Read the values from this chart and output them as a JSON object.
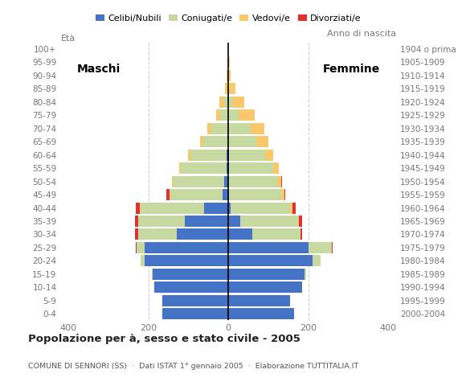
{
  "age_groups": [
    "0-4",
    "5-9",
    "10-14",
    "15-19",
    "20-24",
    "25-29",
    "30-34",
    "35-39",
    "40-44",
    "45-49",
    "50-54",
    "55-59",
    "60-64",
    "65-69",
    "70-74",
    "75-79",
    "80-84",
    "85-89",
    "90-94",
    "95-99",
    "100+"
  ],
  "birth_years": [
    "2000-2004",
    "1995-1999",
    "1990-1994",
    "1985-1989",
    "1980-1984",
    "1975-1979",
    "1970-1974",
    "1965-1969",
    "1960-1964",
    "1955-1959",
    "1950-1954",
    "1945-1949",
    "1940-1944",
    "1935-1939",
    "1930-1934",
    "1925-1929",
    "1920-1924",
    "1915-1919",
    "1910-1914",
    "1905-1909",
    "1904 o prima"
  ],
  "males": {
    "celibe": [
      165,
      165,
      185,
      190,
      210,
      210,
      130,
      110,
      60,
      15,
      10,
      5,
      5,
      2,
      2,
      0,
      0,
      0,
      0,
      0,
      0
    ],
    "coniugato": [
      0,
      0,
      0,
      2,
      10,
      20,
      95,
      115,
      160,
      130,
      130,
      115,
      90,
      60,
      40,
      20,
      10,
      3,
      2,
      0,
      0
    ],
    "vedovo": [
      0,
      0,
      0,
      0,
      0,
      0,
      0,
      0,
      2,
      2,
      2,
      3,
      5,
      8,
      10,
      10,
      12,
      5,
      2,
      0,
      0
    ],
    "divorziato": [
      0,
      0,
      0,
      0,
      0,
      2,
      8,
      8,
      10,
      8,
      0,
      0,
      0,
      0,
      0,
      0,
      0,
      0,
      0,
      0,
      0
    ]
  },
  "females": {
    "nubile": [
      165,
      155,
      185,
      190,
      210,
      200,
      60,
      30,
      5,
      2,
      2,
      2,
      2,
      0,
      0,
      0,
      0,
      0,
      0,
      0,
      0
    ],
    "coniugata": [
      0,
      0,
      0,
      5,
      20,
      60,
      120,
      145,
      150,
      130,
      120,
      110,
      90,
      70,
      55,
      25,
      10,
      2,
      0,
      0,
      0
    ],
    "vedova": [
      0,
      0,
      0,
      0,
      0,
      0,
      0,
      2,
      5,
      8,
      10,
      15,
      20,
      30,
      35,
      40,
      30,
      15,
      5,
      3,
      0
    ],
    "divorziata": [
      0,
      0,
      0,
      0,
      0,
      2,
      5,
      8,
      8,
      2,
      2,
      0,
      0,
      0,
      0,
      0,
      0,
      0,
      0,
      0,
      0
    ]
  },
  "color_celibe": "#4472c4",
  "color_coniugato": "#c5d9a0",
  "color_vedovo": "#f9c86a",
  "color_divorziato": "#e03030",
  "title": "Popolazione per à, sesso e stato civile - 2005",
  "subtitle": "COMUNE DI SENNORI (SS)  ·  Dati ISTAT 1° gennaio 2005  ·  Elaborazione TUTTITALIA.IT",
  "label_maschi": "Maschi",
  "label_femmine": "Femmine",
  "ylabel_left": "Età",
  "ylabel_right": "Anno di nascita",
  "xlim": 420,
  "xtick_vals": [
    -400,
    -200,
    0,
    200,
    400
  ],
  "legend_labels": [
    "Celibi/Nubili",
    "Coniugati/e",
    "Vedovi/e",
    "Divorziati/e"
  ],
  "bg_color": "#ffffff",
  "grid_color": "#cccccc",
  "tick_label_color": "#777777",
  "title_color": "#222222",
  "subtitle_color": "#555555"
}
